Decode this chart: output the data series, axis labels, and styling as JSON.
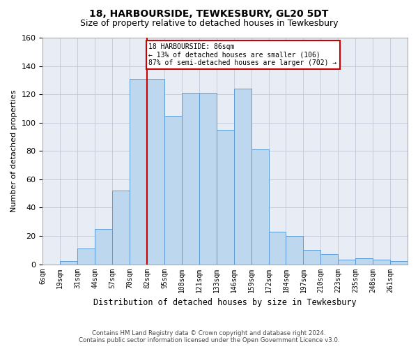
{
  "title": "18, HARBOURSIDE, TEWKESBURY, GL20 5DT",
  "subtitle": "Size of property relative to detached houses in Tewkesbury",
  "xlabel": "Distribution of detached houses by size in Tewkesbury",
  "ylabel": "Number of detached properties",
  "bar_labels": [
    "6sqm",
    "19sqm",
    "31sqm",
    "44sqm",
    "57sqm",
    "70sqm",
    "82sqm",
    "95sqm",
    "108sqm",
    "121sqm",
    "133sqm",
    "146sqm",
    "159sqm",
    "172sqm",
    "184sqm",
    "197sqm",
    "210sqm",
    "223sqm",
    "235sqm",
    "248sqm",
    "261sqm"
  ],
  "bar_heights": [
    0,
    2,
    11,
    25,
    52,
    131,
    131,
    105,
    121,
    121,
    95,
    124,
    81,
    23,
    20,
    10,
    7,
    3,
    4,
    3,
    2
  ],
  "bar_color": "#bdd7ee",
  "bar_edge_color": "#5b9bd5",
  "line_color": "#cc0000",
  "annotation_text": "18 HARBOURSIDE: 86sqm\n← 13% of detached houses are smaller (106)\n87% of semi-detached houses are larger (702) →",
  "annotation_box_color": "#ffffff",
  "annotation_box_edge": "#cc0000",
  "property_line_bin": 6,
  "ylim": [
    0,
    160
  ],
  "yticks": [
    0,
    20,
    40,
    60,
    80,
    100,
    120,
    140,
    160
  ],
  "footer_line1": "Contains HM Land Registry data © Crown copyright and database right 2024.",
  "footer_line2": "Contains public sector information licensed under the Open Government Licence v3.0.",
  "bg_color": "#ffffff",
  "plot_bg_color": "#e8edf5",
  "grid_color": "#c0c8d8",
  "title_fontsize": 10,
  "subtitle_fontsize": 9
}
